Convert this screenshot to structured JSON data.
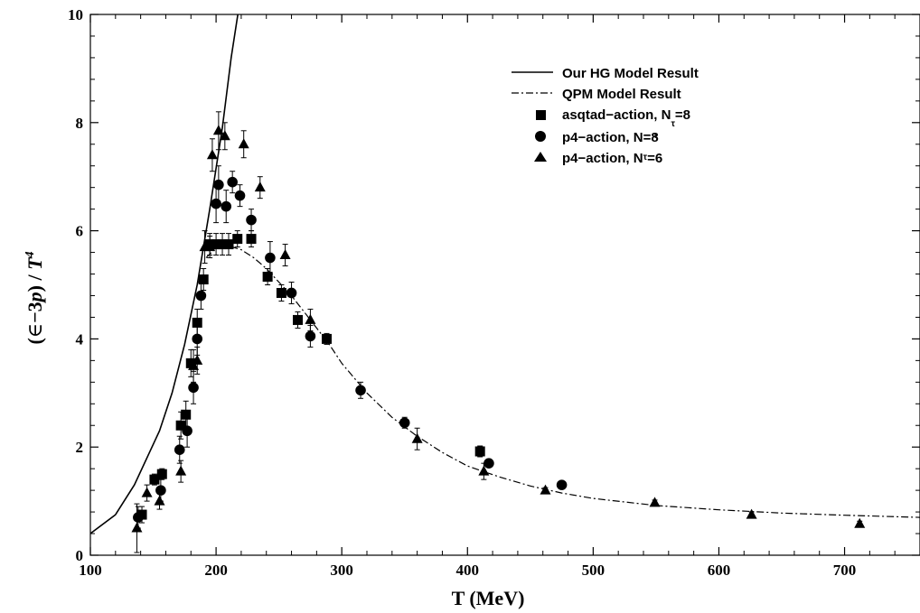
{
  "chart_data": {
    "type": "scatter",
    "xlabel": "T (MeV)",
    "ylabel_parts": {
      "open": "(",
      "epsilon": "∈",
      "rest": "−3",
      "p": "p",
      "close": ") / ",
      "T": "T",
      "exp": "4"
    },
    "xlim": [
      100,
      760
    ],
    "ylim": [
      0,
      10
    ],
    "xticks": [
      100,
      200,
      300,
      400,
      500,
      600,
      700
    ],
    "yticks": [
      0,
      2,
      4,
      6,
      8,
      10
    ],
    "grid": false,
    "legend_position": "top-right",
    "legend": [
      {
        "label": "Our HG Model Result",
        "marker": "solid-line"
      },
      {
        "label": "QPM Model Result",
        "marker": "dash-dot-line"
      },
      {
        "label": "asqtad−action, N",
        "sub": "τ",
        "tail": "=8",
        "marker": "square"
      },
      {
        "label": "p4−action, N=8",
        "sub": "τ",
        "tail": "",
        "marker": "circle"
      },
      {
        "label": "p4−action, N",
        "sub": "τ",
        "tail": "=6",
        "marker": "triangle"
      }
    ],
    "lines": [
      {
        "name": "Our HG Model Result",
        "style": "solid",
        "x": [
          100,
          120,
          135,
          145,
          155,
          165,
          175,
          185,
          195,
          205,
          212,
          218
        ],
        "y": [
          0.4,
          0.75,
          1.3,
          1.8,
          2.3,
          3.0,
          3.9,
          5.0,
          6.4,
          7.9,
          9.2,
          10.1
        ]
      },
      {
        "name": "QPM Model Result",
        "style": "dash-dot",
        "x": [
          192,
          200,
          210,
          220,
          230,
          240,
          250,
          260,
          270,
          280,
          290,
          300,
          320,
          340,
          360,
          380,
          400,
          425,
          450,
          475,
          500,
          550,
          600,
          650,
          700,
          760
        ],
        "y": [
          5.5,
          5.68,
          5.72,
          5.65,
          5.5,
          5.3,
          5.05,
          4.8,
          4.5,
          4.2,
          3.9,
          3.55,
          3.0,
          2.55,
          2.2,
          1.9,
          1.65,
          1.45,
          1.28,
          1.15,
          1.05,
          0.92,
          0.84,
          0.78,
          0.74,
          0.7
        ]
      }
    ],
    "series": [
      {
        "name": "asqtad−action, N=8",
        "marker": "square",
        "x": [
          141,
          151,
          157,
          172,
          176,
          180,
          185,
          190,
          195,
          200,
          205,
          210,
          217,
          228,
          241,
          252,
          265,
          288,
          410
        ],
        "y": [
          0.75,
          1.4,
          1.5,
          2.4,
          2.6,
          3.55,
          4.3,
          5.1,
          5.75,
          5.75,
          5.75,
          5.75,
          5.85,
          5.85,
          5.15,
          4.85,
          4.35,
          4.0,
          1.92
        ],
        "err": [
          0.15,
          0.1,
          0.1,
          0.25,
          0.25,
          0.25,
          0.25,
          0.2,
          0.2,
          0.2,
          0.2,
          0.2,
          0.15,
          0.15,
          0.15,
          0.15,
          0.15,
          0.1,
          0.1
        ]
      },
      {
        "name": "p4−action, N=8",
        "marker": "circle",
        "x": [
          138,
          156,
          171,
          177,
          182,
          185,
          188,
          200,
          202,
          208,
          213,
          219,
          228,
          243,
          260,
          275,
          315,
          350,
          417,
          475
        ],
        "y": [
          0.7,
          1.2,
          1.95,
          2.3,
          3.1,
          4.0,
          4.8,
          6.5,
          6.85,
          6.45,
          6.9,
          6.65,
          6.2,
          5.5,
          4.85,
          4.05,
          3.05,
          2.45,
          1.7,
          1.3
        ],
        "err": [
          0.2,
          0.2,
          0.25,
          0.3,
          0.3,
          0.3,
          0.25,
          0.35,
          0.35,
          0.3,
          0.2,
          0.2,
          0.2,
          0.3,
          0.2,
          0.2,
          0.15,
          0.1,
          0.05,
          0.05
        ]
      },
      {
        "name": "p4−action, N=6",
        "marker": "triangle",
        "x": [
          137,
          145,
          155,
          172,
          182,
          185,
          191,
          195,
          197,
          202,
          207,
          222,
          235,
          255,
          275,
          360,
          413,
          462,
          549,
          626,
          712
        ],
        "y": [
          0.5,
          1.15,
          1.0,
          1.55,
          3.5,
          3.6,
          5.7,
          5.7,
          7.4,
          7.85,
          7.75,
          7.6,
          6.8,
          5.55,
          4.35,
          2.15,
          1.55,
          1.2,
          0.97,
          0.75,
          0.58
        ],
        "err": [
          0.45,
          0.15,
          0.15,
          0.2,
          0.3,
          0.25,
          0.3,
          0.2,
          0.3,
          0.35,
          0.25,
          0.25,
          0.2,
          0.2,
          0.2,
          0.2,
          0.15,
          0.05,
          0.05,
          0.05,
          0.05
        ]
      }
    ]
  }
}
